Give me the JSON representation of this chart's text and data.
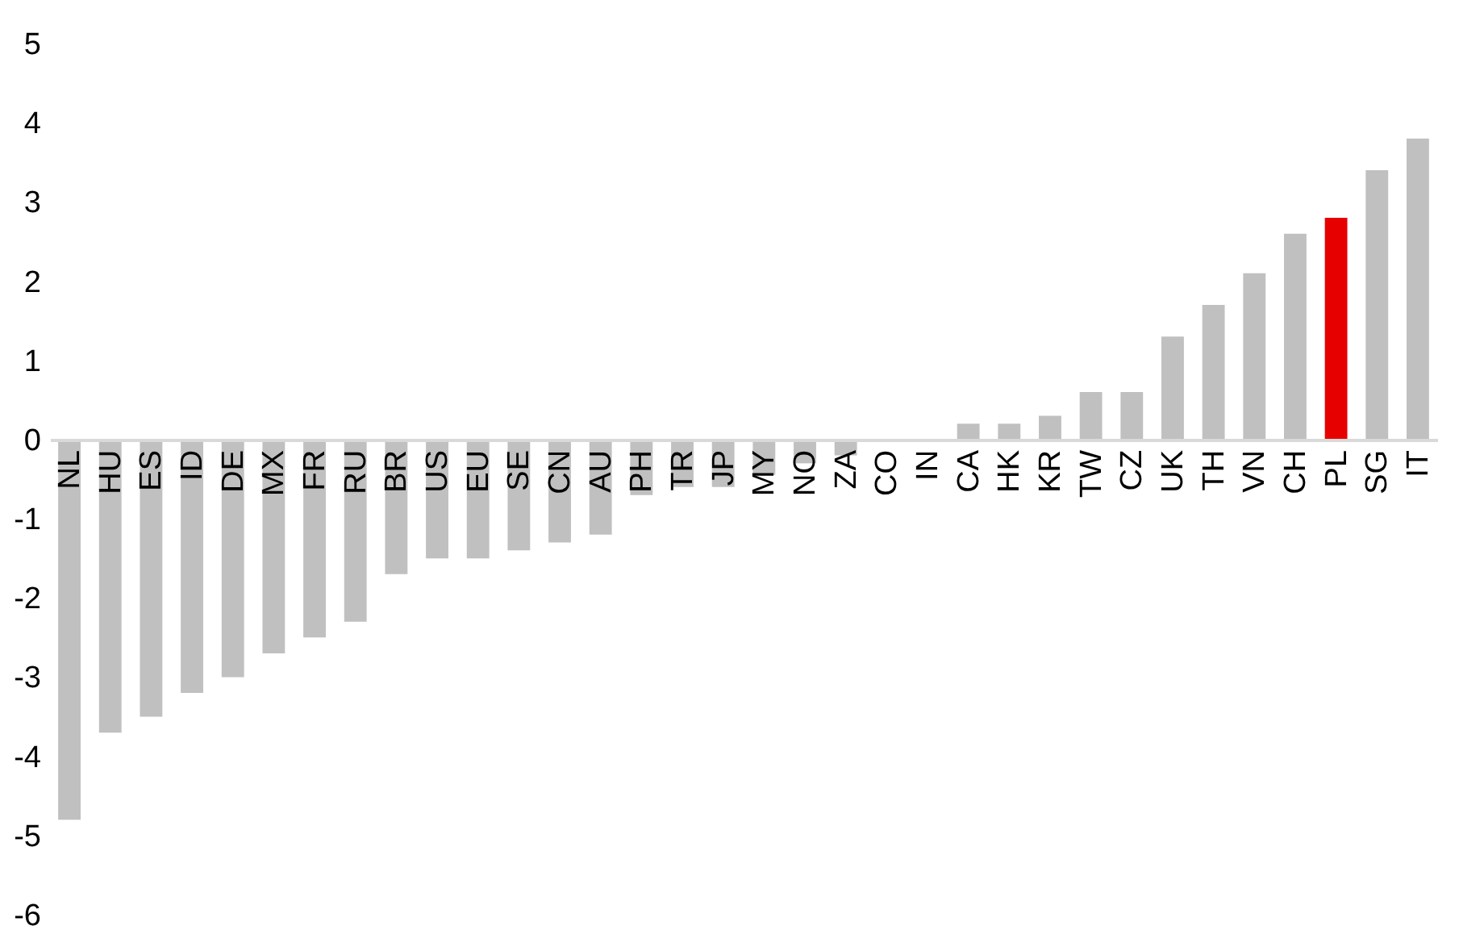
{
  "chart_data": {
    "type": "bar",
    "categories": [
      "NL",
      "HU",
      "ES",
      "ID",
      "DE",
      "MX",
      "FR",
      "RU",
      "BR",
      "US",
      "EU",
      "SE",
      "CN",
      "AU",
      "PH",
      "TR",
      "JP",
      "MY",
      "NO",
      "ZA",
      "CO",
      "IN",
      "CA",
      "HK",
      "KR",
      "TW",
      "CZ",
      "UK",
      "TH",
      "VN",
      "CH",
      "PL",
      "SG",
      "IT"
    ],
    "values": [
      -4.8,
      -3.7,
      -3.5,
      -3.2,
      -3.0,
      -2.7,
      -2.5,
      -2.3,
      -1.7,
      -1.5,
      -1.5,
      -1.4,
      -1.3,
      -1.2,
      -0.7,
      -0.6,
      -0.6,
      -0.45,
      -0.3,
      -0.2,
      0,
      0,
      0.2,
      0.2,
      0.3,
      0.6,
      0.6,
      1.3,
      1.7,
      2.1,
      2.6,
      2.8,
      3.4,
      3.8
    ],
    "colors": [
      "#c0c0c0",
      "#c0c0c0",
      "#c0c0c0",
      "#c0c0c0",
      "#c0c0c0",
      "#c0c0c0",
      "#c0c0c0",
      "#c0c0c0",
      "#c0c0c0",
      "#c0c0c0",
      "#c0c0c0",
      "#c0c0c0",
      "#c0c0c0",
      "#c0c0c0",
      "#c0c0c0",
      "#c0c0c0",
      "#c0c0c0",
      "#c0c0c0",
      "#c0c0c0",
      "#c0c0c0",
      "#c0c0c0",
      "#c0c0c0",
      "#c0c0c0",
      "#c0c0c0",
      "#c0c0c0",
      "#c0c0c0",
      "#c0c0c0",
      "#c0c0c0",
      "#c0c0c0",
      "#c0c0c0",
      "#c0c0c0",
      "#e60000",
      "#c0c0c0",
      "#c0c0c0"
    ],
    "ylim": [
      -6,
      5
    ],
    "yticks": [
      -6,
      -5,
      -4,
      -3,
      -2,
      -1,
      0,
      1,
      2,
      3,
      4,
      5
    ]
  }
}
